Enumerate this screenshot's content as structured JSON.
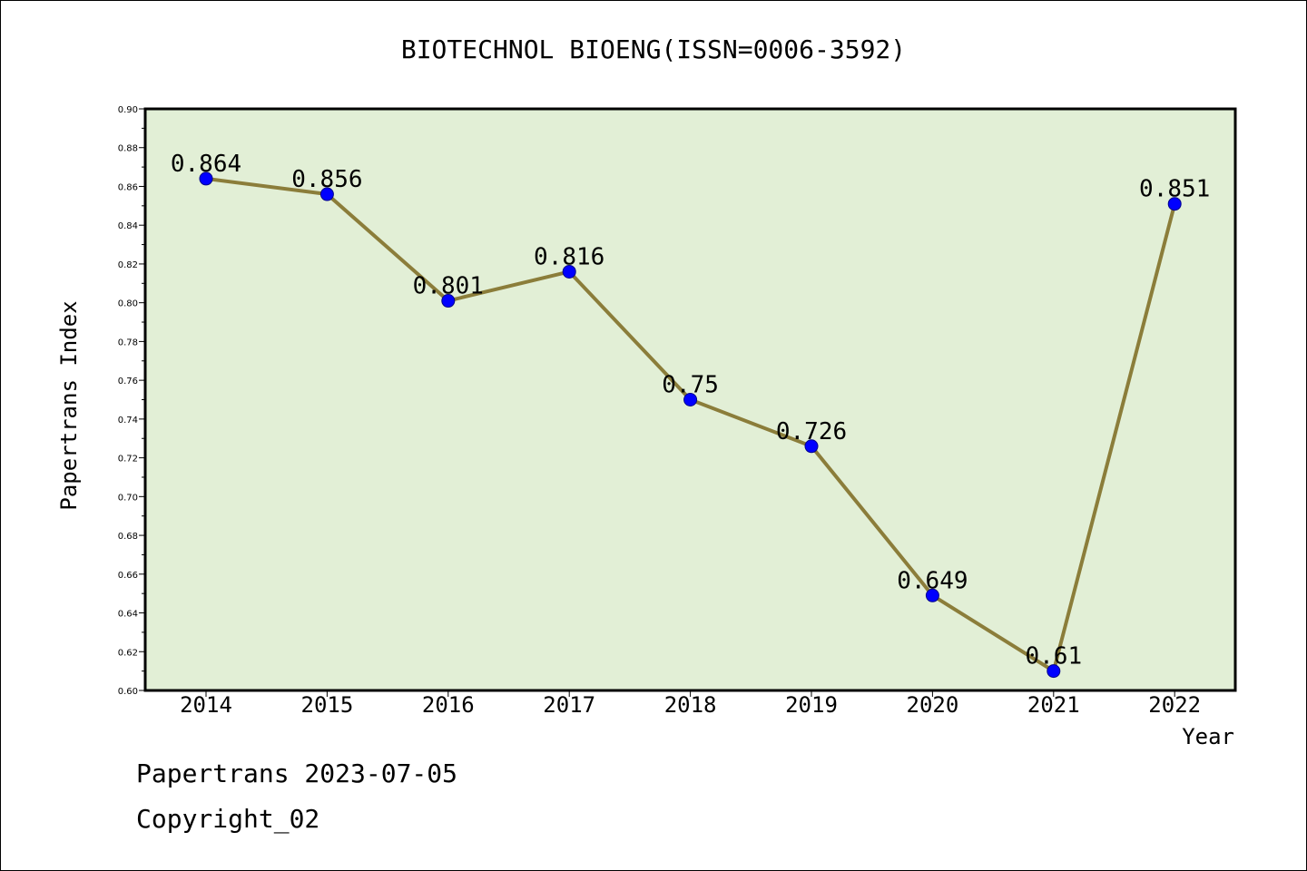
{
  "title": "BIOTECHNOL BIOENG(ISSN=0006-3592)",
  "footer": {
    "line1": "Papertrans 2023-07-05",
    "line2": "Copyright_02"
  },
  "colors": {
    "plot_bg": "#e2efd6",
    "line": "#8b7d3a",
    "marker": "#0000ff",
    "axis": "#000000"
  },
  "chart_data": {
    "type": "line",
    "title": "BIOTECHNOL BIOENG(ISSN=0006-3592)",
    "xlabel": "Year",
    "ylabel": "Papertrans Index",
    "categories": [
      "2014",
      "2015",
      "2016",
      "2017",
      "2018",
      "2019",
      "2020",
      "2021",
      "2022"
    ],
    "values": [
      0.864,
      0.856,
      0.801,
      0.816,
      0.75,
      0.726,
      0.649,
      0.61,
      0.851
    ],
    "data_labels": [
      "0.864",
      "0.856",
      "0.801",
      "0.816",
      "0.75",
      "0.726",
      "0.649",
      "0.61",
      "0.851"
    ],
    "ylim": [
      0.6,
      0.9
    ],
    "yticks": [
      "0.60",
      "0.62",
      "0.64",
      "0.66",
      "0.68",
      "0.70",
      "0.72",
      "0.74",
      "0.76",
      "0.78",
      "0.80",
      "0.82",
      "0.84",
      "0.86",
      "0.88",
      "0.90"
    ],
    "grid": false,
    "legend": "none"
  }
}
